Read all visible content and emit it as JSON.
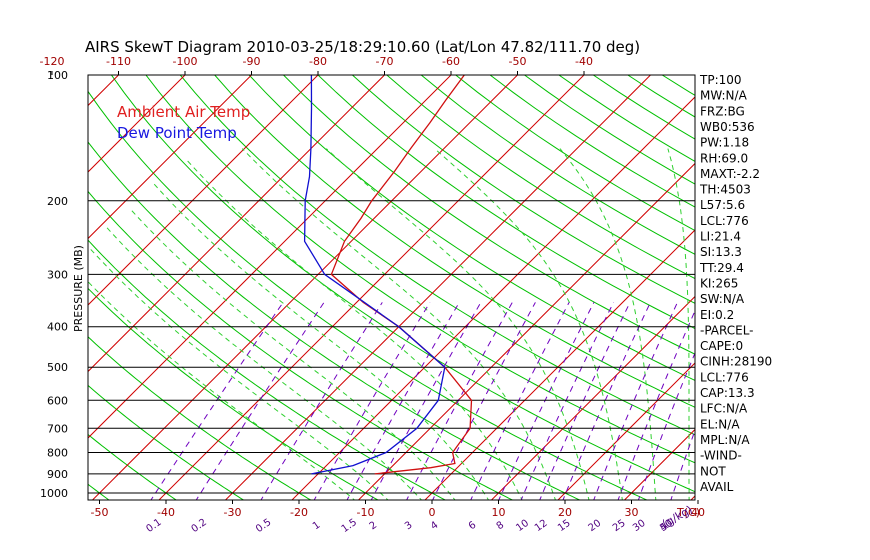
{
  "chart_data": {
    "type": "line",
    "title": "AIRS SkewT Diagram 2010-03-25/18:29:10.60 (Lat/Lon 47.82/111.70 deg)",
    "ylabel": "PRESSURE (MB)",
    "xlabel_unit": "T(C)",
    "mixing_unit": "(g/kg)",
    "pressure_ticks": [
      100,
      200,
      300,
      400,
      500,
      600,
      700,
      800,
      900,
      1000
    ],
    "bottom_temp_ticks": [
      -50,
      -40,
      -30,
      -20,
      -10,
      0,
      10,
      20,
      30,
      40
    ],
    "top_temp_ticks": [
      -120,
      -110,
      -100,
      -90,
      -80,
      -70,
      -60,
      -50,
      -40
    ],
    "mixing_ratio_ticks": [
      "0.1",
      "0.2",
      "0.5",
      "1",
      "1.5",
      "2",
      "3",
      "4",
      "6",
      "8",
      "10",
      "12",
      "15",
      "20",
      "25",
      "30",
      "40",
      "50"
    ],
    "legend": [
      {
        "name": "Ambient Air Temp",
        "color": "#e02020"
      },
      {
        "name": "Dew Point Temp",
        "color": "#1818e0"
      }
    ],
    "series": [
      {
        "name": "Ambient Air Temp",
        "color": "#d01010",
        "points": [
          {
            "p": 900,
            "t": -11.5
          },
          {
            "p": 870,
            "t": -4
          },
          {
            "p": 850,
            "t": -1
          },
          {
            "p": 800,
            "t": -3
          },
          {
            "p": 700,
            "t": -4
          },
          {
            "p": 600,
            "t": -8
          },
          {
            "p": 500,
            "t": -17
          },
          {
            "p": 400,
            "t": -30
          },
          {
            "p": 350,
            "t": -39
          },
          {
            "p": 300,
            "t": -48
          },
          {
            "p": 250,
            "t": -51
          },
          {
            "p": 220,
            "t": -52
          },
          {
            "p": 200,
            "t": -53
          },
          {
            "p": 170,
            "t": -54
          },
          {
            "p": 150,
            "t": -55
          },
          {
            "p": 130,
            "t": -56
          },
          {
            "p": 115,
            "t": -57
          },
          {
            "p": 100,
            "t": -58
          }
        ]
      },
      {
        "name": "Dew Point Temp",
        "color": "#1010d0",
        "points": [
          {
            "p": 900,
            "t": -21
          },
          {
            "p": 860,
            "t": -16
          },
          {
            "p": 800,
            "t": -13
          },
          {
            "p": 700,
            "t": -12
          },
          {
            "p": 600,
            "t": -13
          },
          {
            "p": 500,
            "t": -17
          },
          {
            "p": 400,
            "t": -30
          },
          {
            "p": 300,
            "t": -49
          },
          {
            "p": 250,
            "t": -57
          },
          {
            "p": 200,
            "t": -63
          },
          {
            "p": 175,
            "t": -66
          },
          {
            "p": 150,
            "t": -70
          },
          {
            "p": 120,
            "t": -76
          },
          {
            "p": 100,
            "t": -81
          }
        ]
      }
    ]
  },
  "indices": [
    "TP:100",
    "MW:N/A",
    "FRZ:BG",
    "WB0:536",
    "PW:1.18",
    "RH:69.0",
    "MAXT:-2.2",
    "TH:4503",
    "L57:5.6",
    "LCL:776",
    "LI:21.4",
    "SI:13.3",
    "TT:29.4",
    "KI:265",
    "SW:N/A",
    "EI:0.2",
    "-PARCEL-",
    "CAPE:0",
    "CINH:28190",
    "LCL:776",
    "CAP:13.3",
    "LFC:N/A",
    "EL:N/A",
    "MPL:N/A",
    "-WIND-",
    "NOT",
    "AVAIL"
  ],
  "colors": {
    "frame": "#000000",
    "dry_adiabat": "#00c000",
    "isotherm": "#d00000",
    "moist_adiabat": "#30d030",
    "mixing_ratio": "#7000c0",
    "axis_label": "#a00000",
    "mixing_label": "#500080"
  }
}
